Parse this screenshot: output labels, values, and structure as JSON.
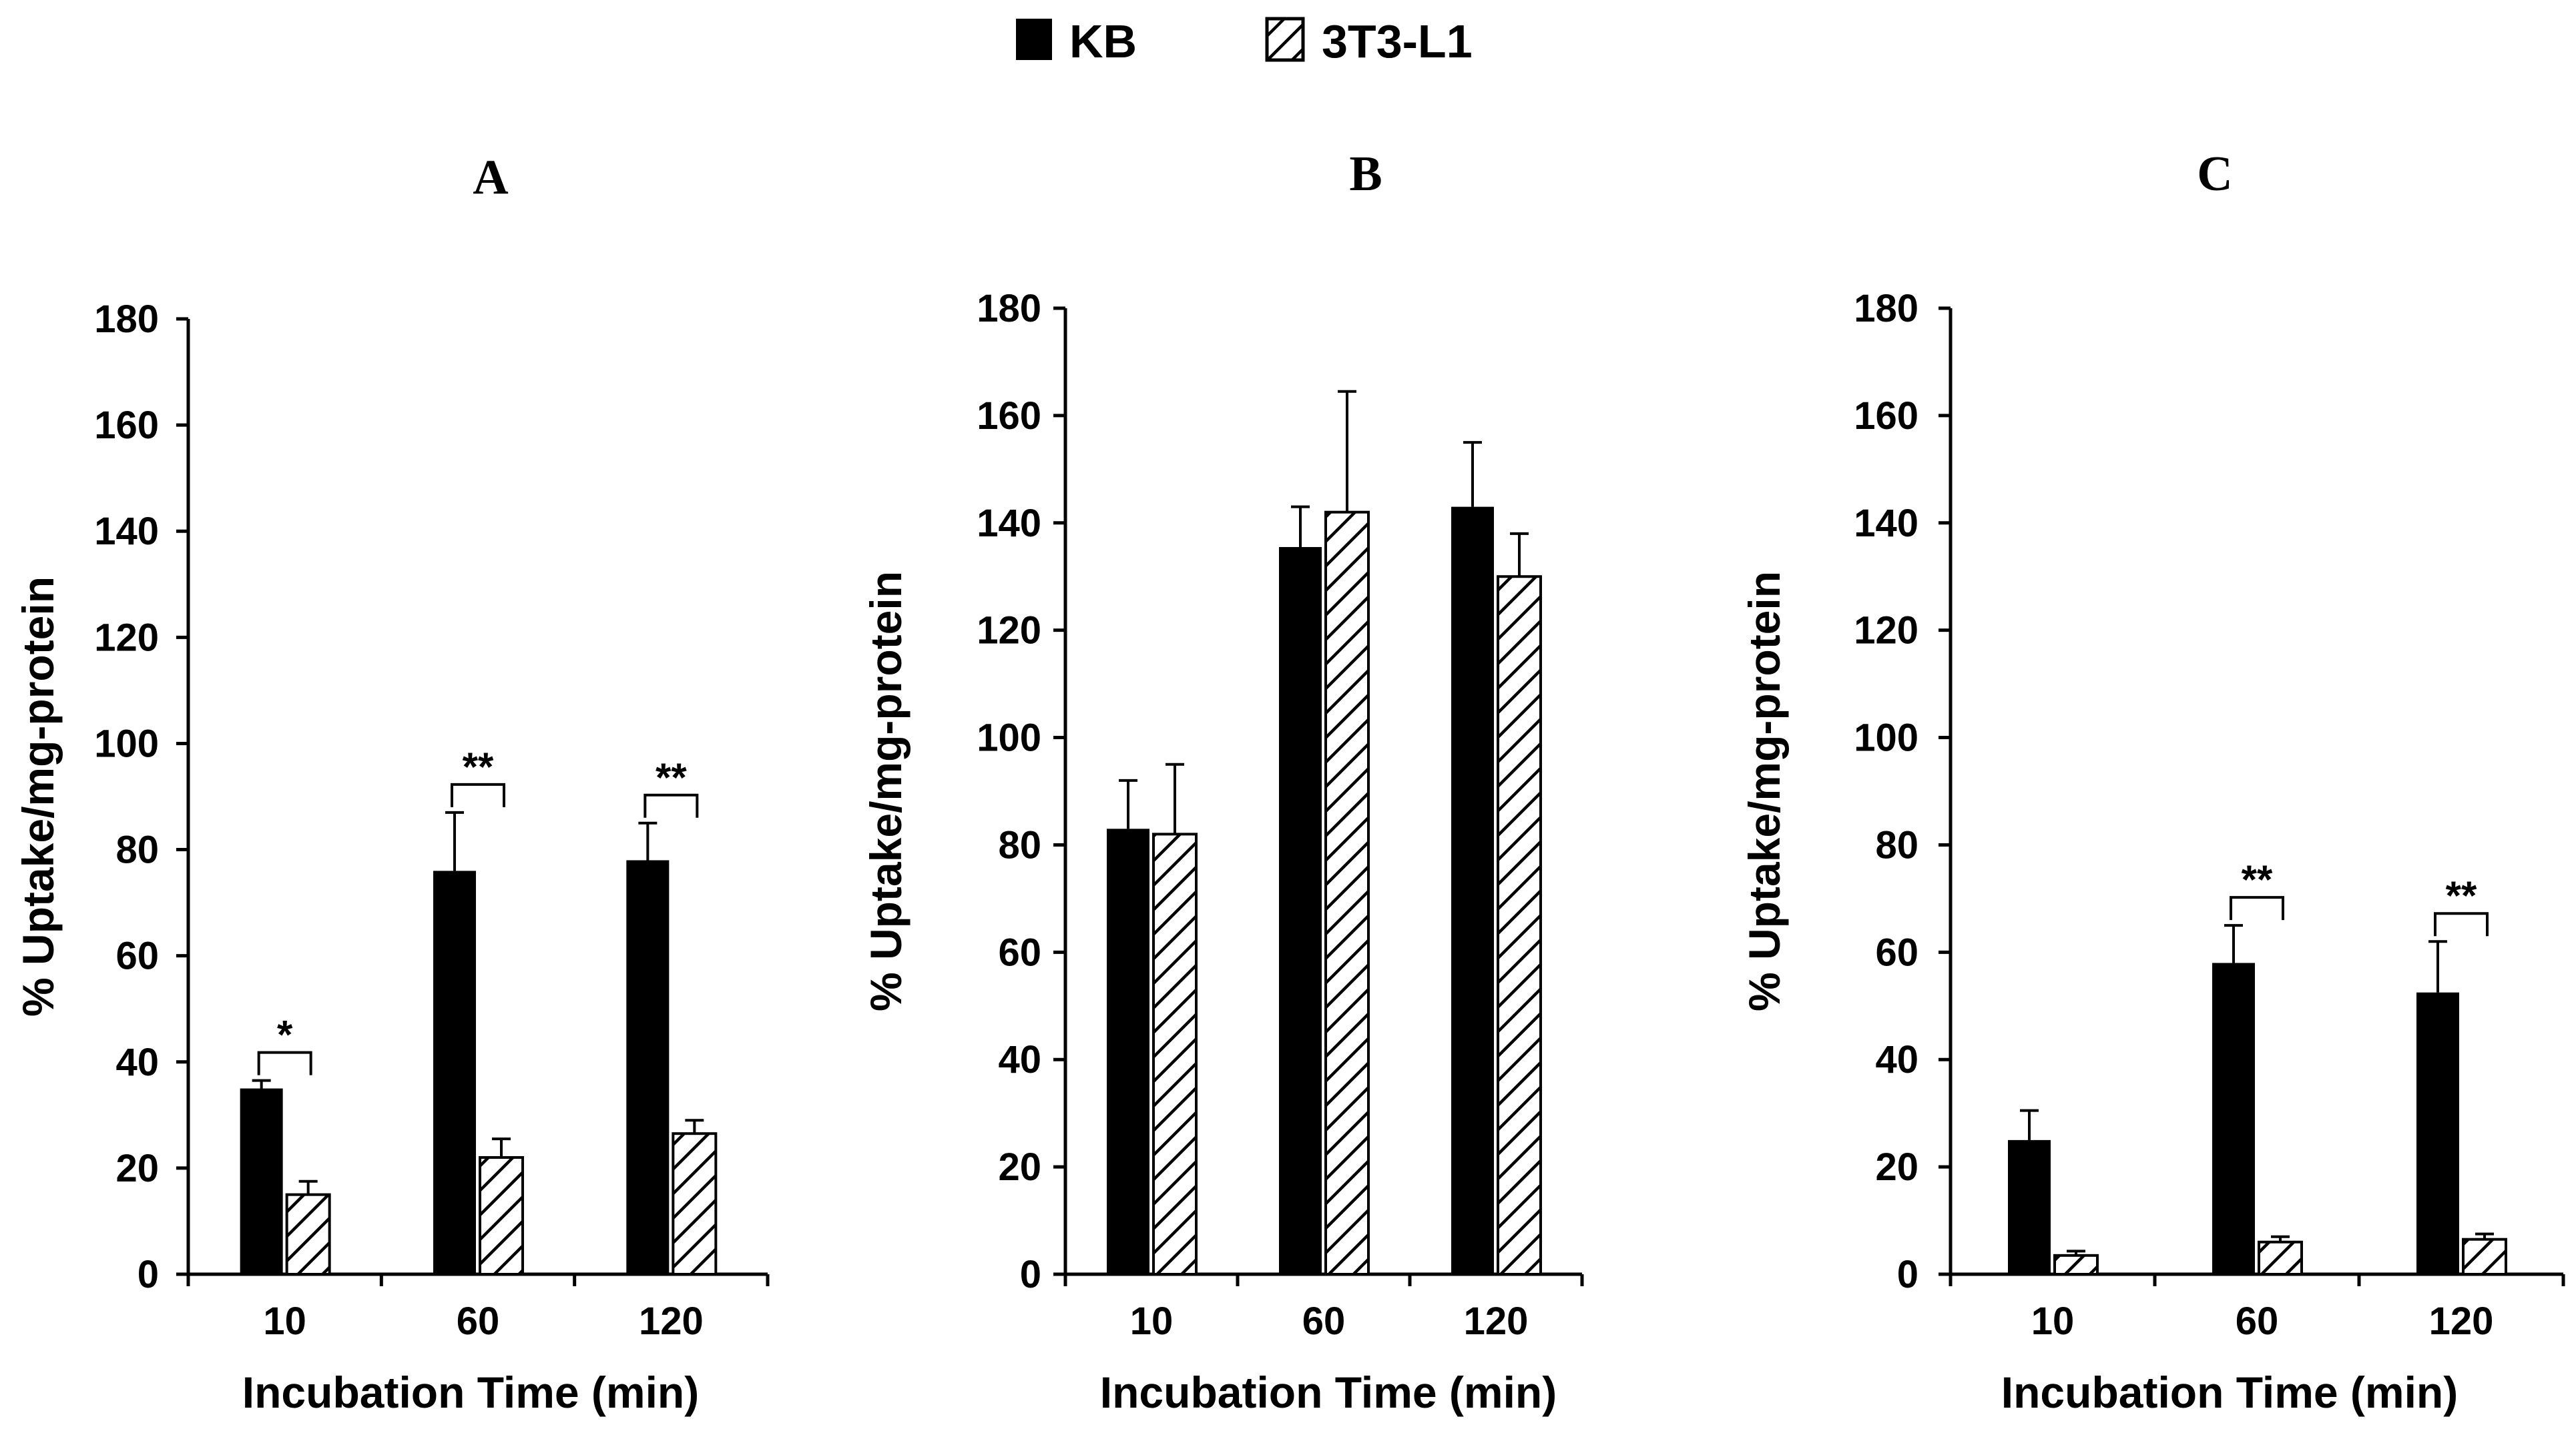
{
  "legend": {
    "items": [
      {
        "label": "KB",
        "pattern": "solid"
      },
      {
        "label": "3T3-L1",
        "pattern": "hatched"
      }
    ]
  },
  "colors": {
    "kb_fill": "#000000",
    "hatch_stroke": "#000000",
    "axis": "#000000",
    "background": "#ffffff"
  },
  "chart_data": [
    {
      "type": "bar",
      "title": "A",
      "categories": [
        "10",
        "60",
        "120"
      ],
      "xlabel": "Incubation Time (min)",
      "ylabel": "% Uptake/mg-protein",
      "ylim": [
        0,
        180
      ],
      "yticks": [
        0,
        20,
        40,
        60,
        80,
        100,
        120,
        140,
        160,
        180
      ],
      "series": [
        {
          "name": "KB",
          "values": [
            35,
            76,
            78
          ],
          "errors": [
            1.5,
            11,
            7
          ]
        },
        {
          "name": "3T3-L1",
          "values": [
            15,
            22,
            26.5
          ],
          "errors": [
            2.5,
            3.5,
            2.5
          ]
        }
      ],
      "significance": [
        "*",
        "**",
        "**"
      ]
    },
    {
      "type": "bar",
      "title": "B",
      "categories": [
        "10",
        "60",
        "120"
      ],
      "xlabel": "Incubation Time (min)",
      "ylabel": "% Uptake/mg-protein",
      "ylim": [
        0,
        180
      ],
      "yticks": [
        0,
        20,
        40,
        60,
        80,
        100,
        120,
        140,
        160,
        180
      ],
      "series": [
        {
          "name": "KB",
          "values": [
            83,
            135.5,
            143
          ],
          "errors": [
            9,
            7.5,
            12
          ]
        },
        {
          "name": "3T3-L1",
          "values": [
            82,
            142,
            130
          ],
          "errors": [
            13,
            22.5,
            8
          ]
        }
      ],
      "significance": [
        "",
        "",
        ""
      ]
    },
    {
      "type": "bar",
      "title": "C",
      "categories": [
        "10",
        "60",
        "120"
      ],
      "xlabel": "Incubation Time (min)",
      "ylabel": "% Uptake/mg-protein",
      "ylim": [
        0,
        180
      ],
      "yticks": [
        0,
        20,
        40,
        60,
        80,
        100,
        120,
        140,
        160,
        180
      ],
      "series": [
        {
          "name": "KB",
          "values": [
            25,
            58,
            52.5
          ],
          "errors": [
            5.5,
            7,
            9.5
          ]
        },
        {
          "name": "3T3-L1",
          "values": [
            3.5,
            6,
            6.5
          ],
          "errors": [
            0.8,
            1,
            1
          ]
        }
      ],
      "significance": [
        "",
        "**",
        "**"
      ]
    }
  ]
}
